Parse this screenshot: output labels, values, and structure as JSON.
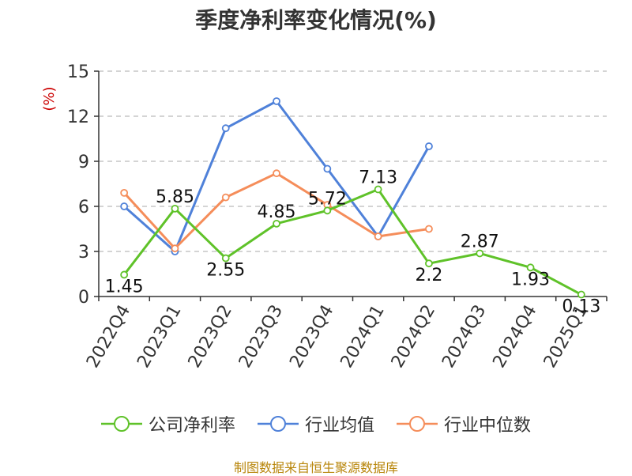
{
  "chart_data": {
    "type": "line",
    "title": "季度净利率变化情况(%)",
    "ylabel": "(%)",
    "xlabel": "",
    "categories": [
      "2022Q4",
      "2023Q1",
      "2023Q2",
      "2023Q3",
      "2023Q4",
      "2024Q1",
      "2024Q2",
      "2024Q3",
      "2024Q4",
      "2025Q1"
    ],
    "ylim": [
      0,
      15
    ],
    "yticks": [
      0,
      3,
      6,
      9,
      12,
      15
    ],
    "grid": true,
    "legend_position": "bottom",
    "series": [
      {
        "name": "公司净利率",
        "color": "#5fc229",
        "values": [
          1.45,
          5.85,
          2.55,
          4.85,
          5.72,
          7.13,
          2.2,
          2.87,
          1.93,
          0.13
        ],
        "labels": [
          "1.45",
          "5.85",
          "2.55",
          "4.85",
          "5.72",
          "7.13",
          "2.2",
          "2.87",
          "1.93",
          "0.13"
        ]
      },
      {
        "name": "行业均值",
        "color": "#4f81d9",
        "values": [
          6.0,
          3.0,
          11.2,
          13.0,
          8.5,
          4.0,
          10.0,
          null,
          null,
          null
        ]
      },
      {
        "name": "行业中位数",
        "color": "#f58d5a",
        "values": [
          6.9,
          3.2,
          6.6,
          8.2,
          6.1,
          4.0,
          4.5,
          null,
          null,
          null
        ]
      }
    ]
  },
  "source": "制图数据来自恒生聚源数据库"
}
